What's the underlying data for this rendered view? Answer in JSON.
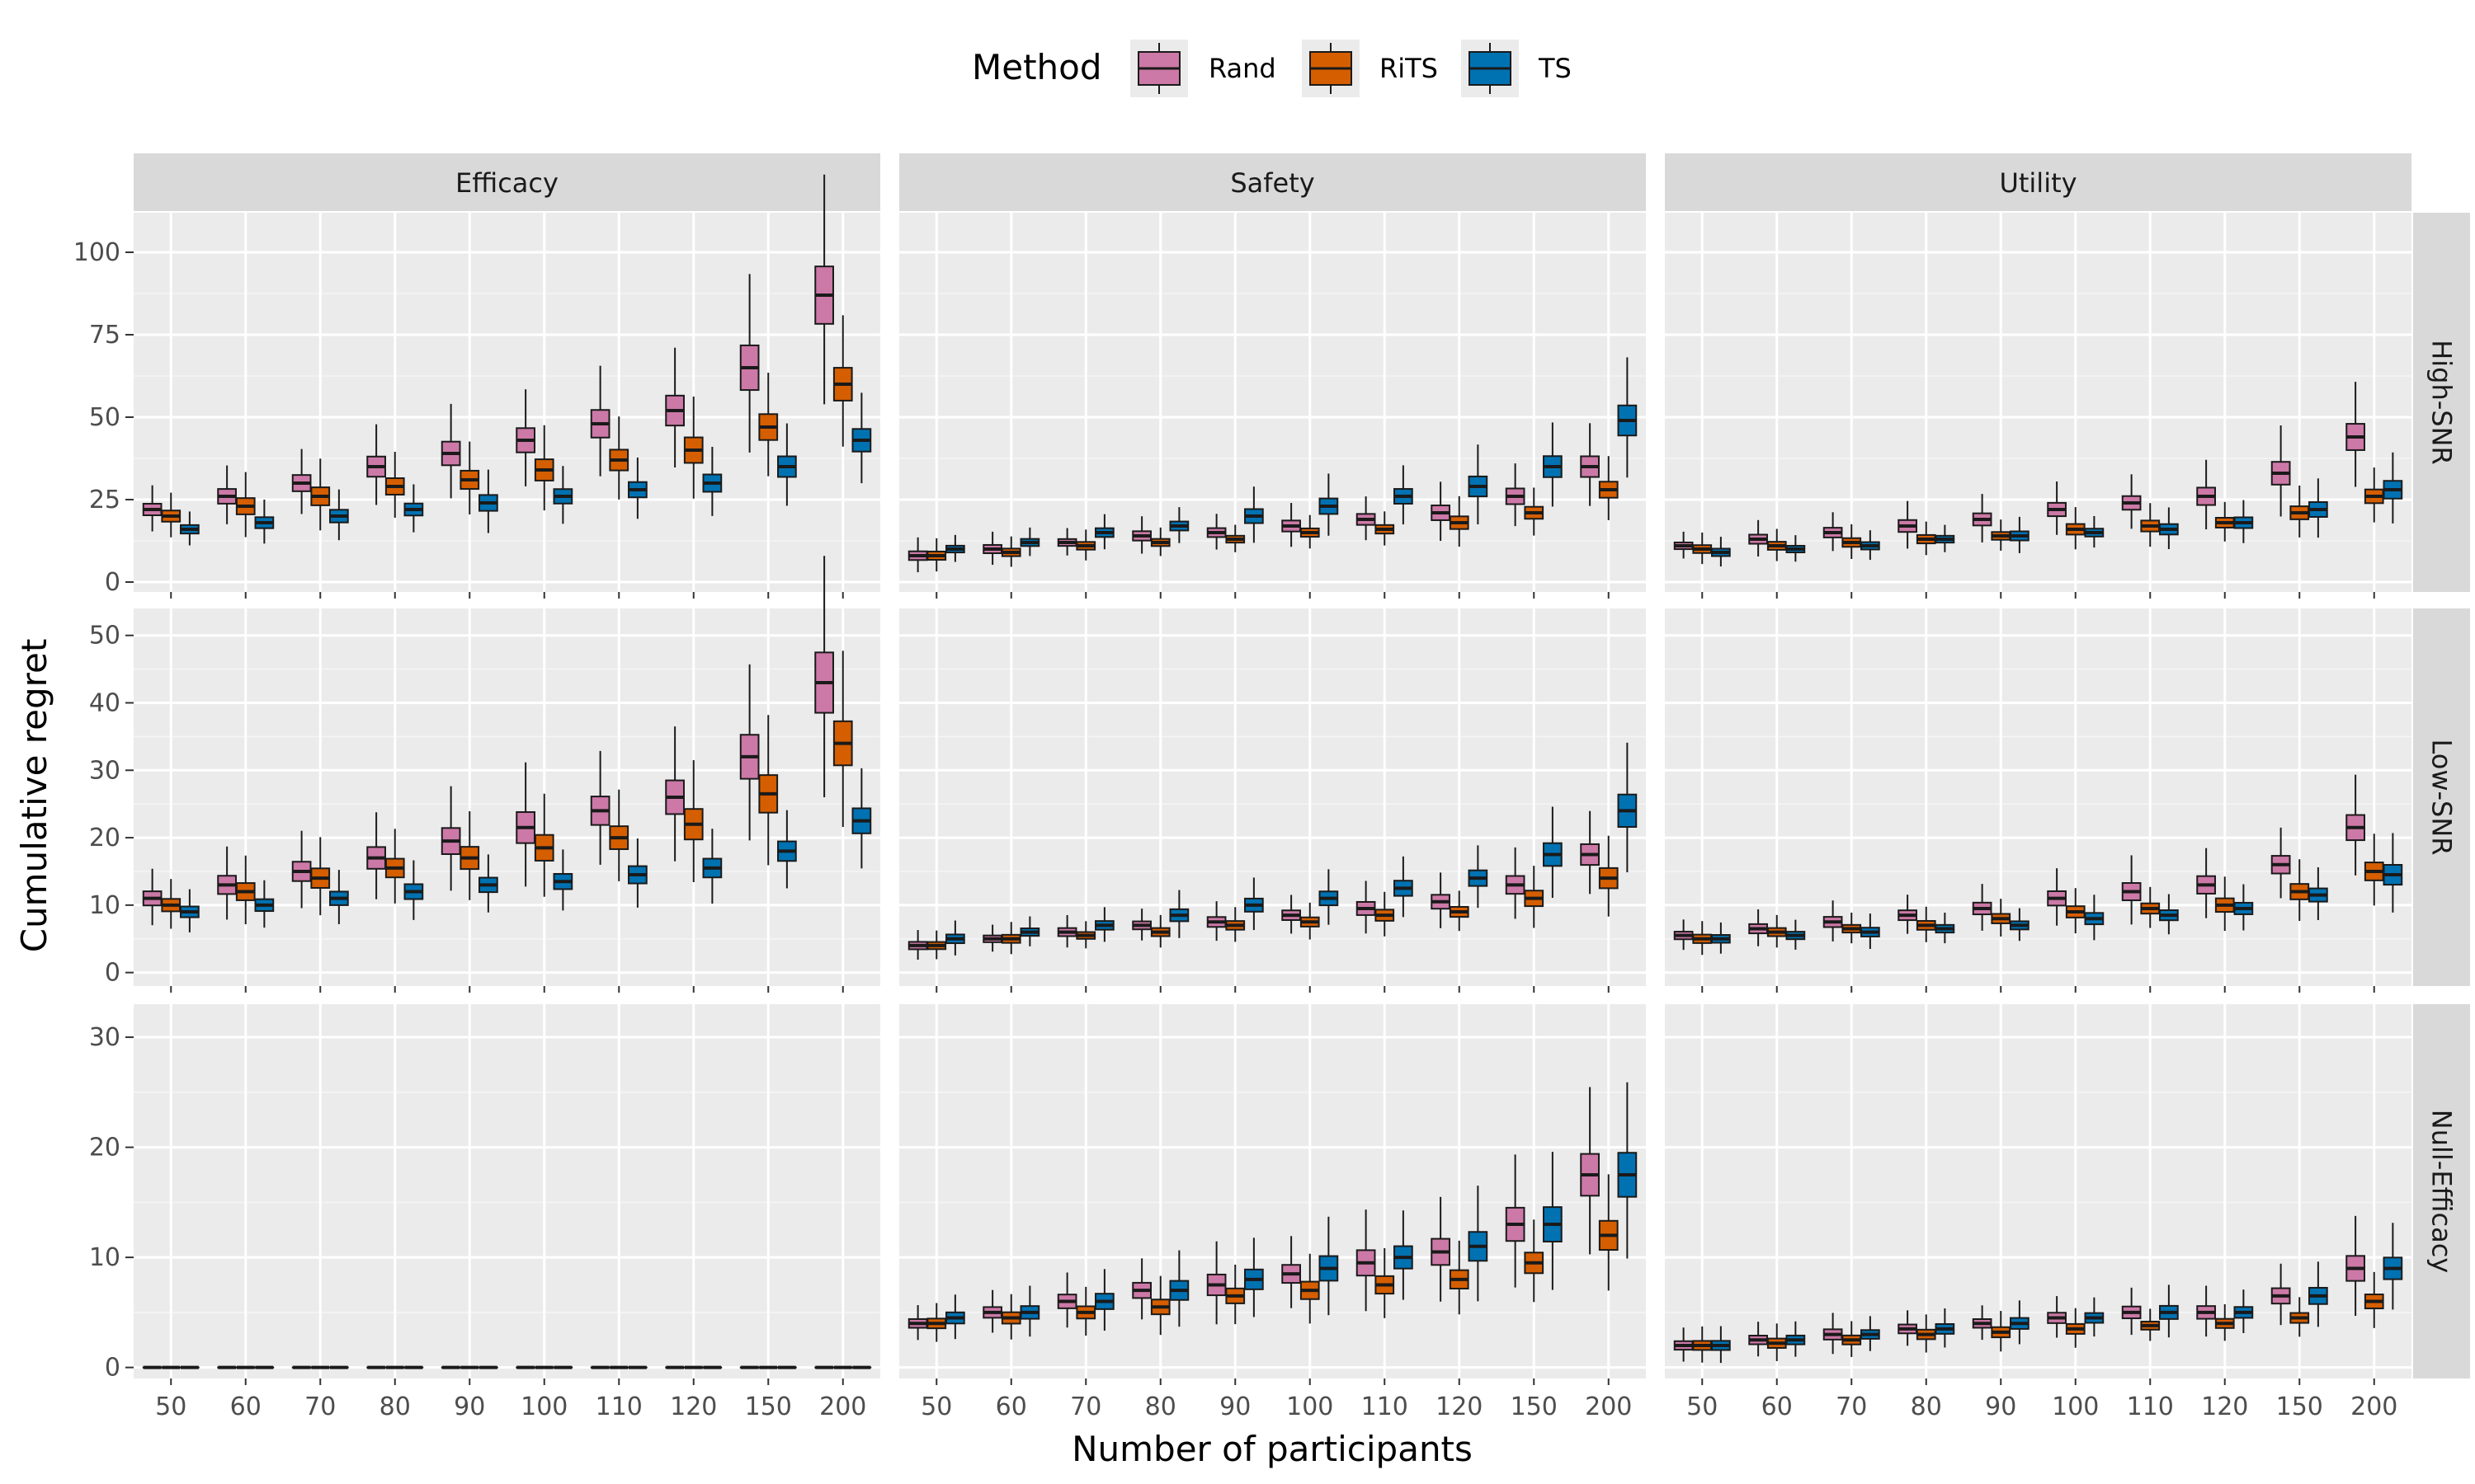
{
  "chart_data": {
    "type": "boxplot-faceted",
    "xlabel": "Number of participants",
    "ylabel": "Cumulative regret",
    "legend": {
      "title": "Method",
      "position": "top"
    },
    "categories": [
      "50",
      "60",
      "70",
      "80",
      "90",
      "100",
      "110",
      "120",
      "150",
      "200"
    ],
    "methods": [
      {
        "name": "Rand",
        "color": "#CC79A7"
      },
      {
        "name": "RiTS",
        "color": "#D55E00"
      },
      {
        "name": "TS",
        "color": "#0072B2"
      }
    ],
    "columns": [
      "Efficacy",
      "Safety",
      "Utility"
    ],
    "rows": [
      {
        "name": "High-SNR",
        "ylim": [
          -3,
          112
        ],
        "yticks": [
          0,
          25,
          50,
          75,
          100
        ]
      },
      {
        "name": "Low-SNR",
        "ylim": [
          -2,
          54
        ],
        "yticks": [
          0,
          10,
          20,
          30,
          40,
          50
        ]
      },
      {
        "name": "Null-Efficacy",
        "ylim": [
          -1,
          33
        ],
        "yticks": [
          0,
          10,
          20,
          30
        ]
      }
    ],
    "panels": [
      {
        "row": "High-SNR",
        "column": "Efficacy",
        "series": [
          {
            "method": "Rand",
            "medians": [
              22,
              26,
              30,
              35,
              39,
              43,
              48,
              52,
              65,
              87
            ]
          },
          {
            "method": "RiTS",
            "medians": [
              20,
              23,
              26,
              29,
              31,
              34,
              37,
              40,
              47,
              60
            ]
          },
          {
            "method": "TS",
            "medians": [
              16,
              18,
              20,
              22,
              24,
              26,
              28,
              30,
              35,
              43
            ]
          }
        ]
      },
      {
        "row": "High-SNR",
        "column": "Safety",
        "series": [
          {
            "method": "Rand",
            "medians": [
              8,
              10,
              12,
              14,
              15,
              17,
              19,
              21,
              26,
              35
            ]
          },
          {
            "method": "RiTS",
            "medians": [
              8,
              9,
              11,
              12,
              13,
              15,
              16,
              18,
              21,
              28
            ]
          },
          {
            "method": "TS",
            "medians": [
              10,
              12,
              15,
              17,
              20,
              23,
              26,
              29,
              35,
              49
            ]
          }
        ]
      },
      {
        "row": "High-SNR",
        "column": "Utility",
        "series": [
          {
            "method": "Rand",
            "medians": [
              11,
              13,
              15,
              17,
              19,
              22,
              24,
              26,
              33,
              44
            ]
          },
          {
            "method": "RiTS",
            "medians": [
              10,
              11,
              12,
              13,
              14,
              16,
              17,
              18,
              21,
              26
            ]
          },
          {
            "method": "TS",
            "medians": [
              9,
              10,
              11,
              13,
              14,
              15,
              16,
              18,
              22,
              28
            ]
          }
        ]
      },
      {
        "row": "Low-SNR",
        "column": "Efficacy",
        "series": [
          {
            "method": "Rand",
            "medians": [
              11,
              13,
              15,
              17,
              19.5,
              21.5,
              24,
              26,
              32,
              43
            ]
          },
          {
            "method": "RiTS",
            "medians": [
              10,
              12,
              14,
              15.5,
              17,
              18.5,
              20,
              22,
              26.5,
              34
            ]
          },
          {
            "method": "TS",
            "medians": [
              9,
              10,
              11,
              12,
              13,
              13.5,
              14.5,
              15.5,
              18,
              22.5
            ]
          }
        ]
      },
      {
        "row": "Low-SNR",
        "column": "Safety",
        "series": [
          {
            "method": "Rand",
            "medians": [
              4,
              5,
              6,
              7,
              7.5,
              8.5,
              9.5,
              10.5,
              13,
              17.5
            ]
          },
          {
            "method": "RiTS",
            "medians": [
              4,
              5,
              5.5,
              6,
              7,
              7.5,
              8.5,
              9,
              11,
              14
            ]
          },
          {
            "method": "TS",
            "medians": [
              5,
              6,
              7,
              8.5,
              10,
              11,
              12.5,
              14,
              17.5,
              24
            ]
          }
        ]
      },
      {
        "row": "Low-SNR",
        "column": "Utility",
        "series": [
          {
            "method": "Rand",
            "medians": [
              5.5,
              6.5,
              7.5,
              8.5,
              9.5,
              11,
              12,
              13,
              16,
              21.5
            ]
          },
          {
            "method": "RiTS",
            "medians": [
              5,
              6,
              6.5,
              7,
              8,
              9,
              9.5,
              10,
              12,
              15
            ]
          },
          {
            "method": "TS",
            "medians": [
              5,
              5.5,
              6,
              6.5,
              7,
              8,
              8.5,
              9.5,
              11.5,
              14.5
            ]
          }
        ]
      },
      {
        "row": "Null-Efficacy",
        "column": "Efficacy",
        "series": [
          {
            "method": "Rand",
            "medians": [
              0,
              0,
              0,
              0,
              0,
              0,
              0,
              0,
              0,
              0
            ]
          },
          {
            "method": "RiTS",
            "medians": [
              0,
              0,
              0,
              0,
              0,
              0,
              0,
              0,
              0,
              0
            ]
          },
          {
            "method": "TS",
            "medians": [
              0,
              0,
              0,
              0,
              0,
              0,
              0,
              0,
              0,
              0
            ]
          }
        ]
      },
      {
        "row": "Null-Efficacy",
        "column": "Safety",
        "series": [
          {
            "method": "Rand",
            "medians": [
              4,
              5,
              6,
              7,
              7.5,
              8.5,
              9.5,
              10.5,
              13,
              17.5
            ]
          },
          {
            "method": "RiTS",
            "medians": [
              4,
              4.5,
              5,
              5.5,
              6.5,
              7,
              7.5,
              8,
              9.5,
              12
            ]
          },
          {
            "method": "TS",
            "medians": [
              4.5,
              5,
              6,
              7,
              8,
              9,
              10,
              11,
              13,
              17.5
            ]
          }
        ]
      },
      {
        "row": "Null-Efficacy",
        "column": "Utility",
        "series": [
          {
            "method": "Rand",
            "medians": [
              2,
              2.5,
              3,
              3.5,
              4,
              4.5,
              5,
              5,
              6.5,
              9
            ]
          },
          {
            "method": "RiTS",
            "medians": [
              2,
              2.2,
              2.5,
              3,
              3.2,
              3.5,
              3.8,
              4,
              4.5,
              6
            ]
          },
          {
            "method": "TS",
            "medians": [
              2,
              2.5,
              3,
              3.5,
              4,
              4.5,
              5,
              5,
              6.5,
              9
            ]
          }
        ]
      }
    ]
  }
}
